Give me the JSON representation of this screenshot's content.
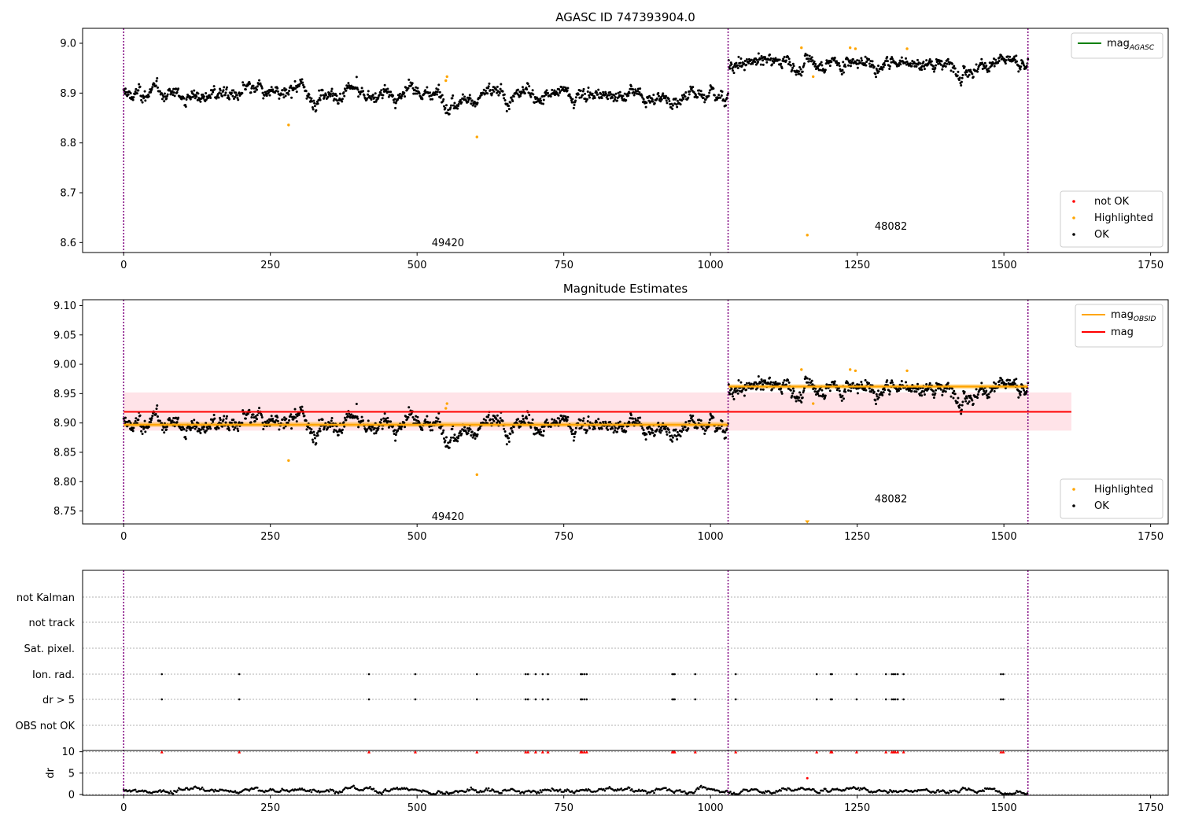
{
  "colors": {
    "ok": "#000000",
    "highlighted": "#ffa500",
    "not_ok": "#ff0000",
    "agasc_line": "#008000",
    "mag_line": "#ff0000",
    "obsid_line": "#ffa500",
    "band": "#ffc0cb",
    "boundary": "#800080"
  },
  "chart_data": [
    {
      "type": "scatter",
      "title": "AGASC ID 747393904.0",
      "xlim": [
        -70,
        1780
      ],
      "ylim": [
        8.58,
        9.03
      ],
      "xticks": [
        0,
        250,
        500,
        750,
        1000,
        1250,
        1500,
        1750
      ],
      "yticks": [
        8.6,
        8.7,
        8.8,
        8.9,
        9.0
      ],
      "ytick_labels": [
        "8.6",
        "8.7",
        "8.8",
        "8.9",
        "9.0"
      ],
      "boundaries": [
        0,
        1030,
        1541
      ],
      "obsids": [
        {
          "label": "49420",
          "x": 515,
          "y": 8.6
        },
        {
          "label": "48082",
          "x": 1270,
          "y": 8.633
        }
      ],
      "segments": [
        {
          "x_start": 0,
          "x_end": 1030,
          "mean": 8.897
        },
        {
          "x_start": 1031,
          "x_end": 1541,
          "mean": 8.962
        }
      ],
      "highlighted_points": [
        [
          281,
          8.836
        ],
        [
          549,
          8.925
        ],
        [
          551,
          8.933
        ],
        [
          602,
          8.812
        ],
        [
          1155,
          8.991
        ],
        [
          1165,
          8.615
        ],
        [
          1175,
          8.933
        ],
        [
          1238,
          8.991
        ],
        [
          1247,
          8.989
        ],
        [
          1335,
          8.989
        ]
      ],
      "legend_top": [
        {
          "label": "mag",
          "sub": "AGASC",
          "kind": "line",
          "color": "#008000"
        }
      ],
      "legend_bottom": [
        {
          "label": "not OK",
          "kind": "point",
          "color": "#ff0000"
        },
        {
          "label": "Highlighted",
          "kind": "point",
          "color": "#ffa500"
        },
        {
          "label": "OK",
          "kind": "point",
          "color": "#000000"
        }
      ]
    },
    {
      "type": "scatter",
      "title": "Magnitude Estimates",
      "xlim": [
        -70,
        1780
      ],
      "ylim": [
        8.728,
        9.11
      ],
      "xticks": [
        0,
        250,
        500,
        750,
        1000,
        1250,
        1500,
        1750
      ],
      "yticks": [
        8.75,
        8.8,
        8.85,
        8.9,
        8.95,
        9.0,
        9.05,
        9.1
      ],
      "ytick_labels": [
        "8.75",
        "8.80",
        "8.85",
        "8.90",
        "8.95",
        "9.00",
        "9.05",
        "9.10"
      ],
      "boundaries": [
        0,
        1030,
        1541
      ],
      "obsids": [
        {
          "label": "49420",
          "x": 515,
          "y": 8.741
        },
        {
          "label": "48082",
          "x": 1270,
          "y": 8.771
        }
      ],
      "mag": 8.919,
      "mag_band": [
        8.887,
        8.952
      ],
      "mag_x": [
        0,
        1615
      ],
      "segments": [
        {
          "x_start": 0,
          "x_end": 1030,
          "mean": 8.897,
          "band": [
            8.893,
            8.902
          ]
        },
        {
          "x_start": 1031,
          "x_end": 1541,
          "mean": 8.962,
          "band": [
            8.958,
            8.966
          ]
        }
      ],
      "highlighted_points": [
        [
          281,
          8.836
        ],
        [
          549,
          8.925
        ],
        [
          551,
          8.933
        ],
        [
          602,
          8.812
        ],
        [
          1155,
          8.991
        ],
        [
          1175,
          8.933
        ],
        [
          1238,
          8.991
        ],
        [
          1247,
          8.989
        ],
        [
          1335,
          8.989
        ]
      ],
      "offscale_markers": [
        [
          1165,
          8.73
        ]
      ],
      "legend_top": [
        {
          "label": "mag",
          "sub": "OBSID",
          "kind": "line",
          "color": "#ffa500"
        },
        {
          "label": "mag",
          "kind": "line",
          "color": "#ff0000"
        }
      ],
      "legend_bottom": [
        {
          "label": "Highlighted",
          "kind": "point",
          "color": "#ffa500"
        },
        {
          "label": "OK",
          "kind": "point",
          "color": "#000000"
        }
      ]
    },
    {
      "type": "scatter",
      "title": "",
      "xlim": [
        -70,
        1780
      ],
      "xticks": [
        0,
        250,
        500,
        750,
        1000,
        1250,
        1500,
        1750
      ],
      "boundaries": [
        0,
        1030,
        1541
      ],
      "flag_categories": [
        "not Kalman",
        "not track",
        "Sat. pixel.",
        "Ion. rad.",
        "dr > 5",
        "OBS not OK"
      ],
      "flag_points_x": [
        65,
        197,
        418,
        497,
        602,
        685,
        689,
        702,
        714,
        723,
        779,
        781,
        785,
        789,
        935,
        937,
        939,
        974,
        1043,
        1181,
        1205,
        1207,
        1249,
        1299,
        1309,
        1312,
        1315,
        1319,
        1329,
        1495,
        1499
      ],
      "flag_rows": [
        "Ion. rad.",
        "dr > 5"
      ],
      "dr": {
        "ylabel": "dr",
        "ylim": [
          -0.2,
          10.3
        ],
        "yticks": [
          0,
          5,
          10
        ],
        "clip_value": 10,
        "outlier": [
          1165,
          3.8
        ],
        "baseline_mean": 1.0
      }
    }
  ]
}
